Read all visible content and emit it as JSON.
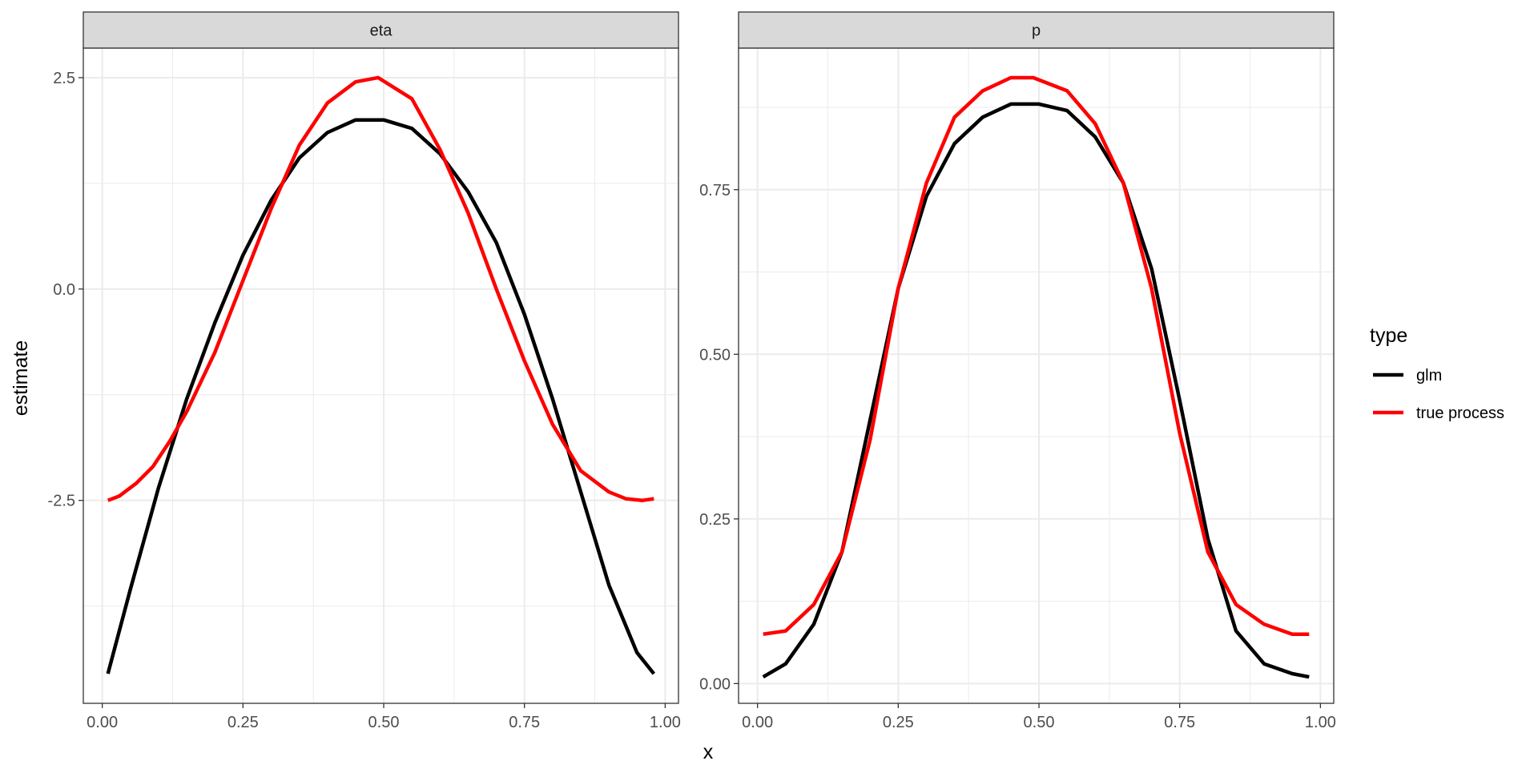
{
  "chart_data": {
    "type": "line",
    "xlabel": "x",
    "ylabel": "estimate",
    "legend": {
      "title": "type",
      "position": "right"
    },
    "series_styles": [
      {
        "name": "glm",
        "color": "#000000"
      },
      {
        "name": "true process",
        "color": "#ff0000"
      }
    ],
    "x_ticks": [
      "0.00",
      "0.25",
      "0.50",
      "0.75",
      "1.00"
    ],
    "x_tick_values": [
      0,
      0.25,
      0.5,
      0.75,
      1.0
    ],
    "x_range": [
      0.01,
      0.98
    ],
    "grid": true,
    "panels": [
      {
        "strip": "eta",
        "ylim": [
          -4.9,
          2.85
        ],
        "y_ticks": [
          "-2.5",
          "0.0",
          "2.5"
        ],
        "y_tick_values": [
          -2.5,
          0,
          2.5
        ],
        "series": [
          {
            "name": "glm",
            "x": [
              0.01,
              0.05,
              0.1,
              0.15,
              0.2,
              0.25,
              0.3,
              0.35,
              0.4,
              0.45,
              0.5,
              0.55,
              0.6,
              0.65,
              0.7,
              0.75,
              0.8,
              0.85,
              0.9,
              0.95,
              0.98
            ],
            "values": [
              -4.55,
              -3.55,
              -2.35,
              -1.3,
              -0.4,
              0.4,
              1.05,
              1.55,
              1.85,
              2.0,
              2.0,
              1.9,
              1.6,
              1.15,
              0.55,
              -0.3,
              -1.3,
              -2.4,
              -3.5,
              -4.3,
              -4.55
            ]
          },
          {
            "name": "true process",
            "x": [
              0.01,
              0.03,
              0.06,
              0.09,
              0.12,
              0.15,
              0.2,
              0.25,
              0.3,
              0.35,
              0.4,
              0.45,
              0.49,
              0.55,
              0.6,
              0.65,
              0.7,
              0.75,
              0.8,
              0.85,
              0.9,
              0.93,
              0.96,
              0.98
            ],
            "values": [
              -2.5,
              -2.45,
              -2.3,
              -2.1,
              -1.8,
              -1.45,
              -0.75,
              0.1,
              0.95,
              1.7,
              2.2,
              2.45,
              2.5,
              2.25,
              1.65,
              0.9,
              0.0,
              -0.85,
              -1.6,
              -2.15,
              -2.4,
              -2.48,
              -2.5,
              -2.48
            ]
          }
        ]
      },
      {
        "strip": "p",
        "ylim": [
          -0.03,
          0.965
        ],
        "y_ticks": [
          "0.00",
          "0.25",
          "0.50",
          "0.75"
        ],
        "y_tick_values": [
          0,
          0.25,
          0.5,
          0.75
        ],
        "series": [
          {
            "name": "glm",
            "x": [
              0.01,
              0.05,
              0.1,
              0.15,
              0.2,
              0.25,
              0.3,
              0.35,
              0.4,
              0.45,
              0.5,
              0.55,
              0.6,
              0.65,
              0.7,
              0.75,
              0.8,
              0.85,
              0.9,
              0.95,
              0.98
            ],
            "values": [
              0.01,
              0.03,
              0.09,
              0.2,
              0.4,
              0.6,
              0.74,
              0.82,
              0.86,
              0.88,
              0.88,
              0.87,
              0.83,
              0.76,
              0.63,
              0.43,
              0.22,
              0.08,
              0.03,
              0.015,
              0.01
            ]
          },
          {
            "name": "true process",
            "x": [
              0.01,
              0.05,
              0.1,
              0.15,
              0.2,
              0.25,
              0.3,
              0.35,
              0.4,
              0.45,
              0.49,
              0.55,
              0.6,
              0.65,
              0.7,
              0.75,
              0.8,
              0.85,
              0.9,
              0.95,
              0.98
            ],
            "values": [
              0.075,
              0.08,
              0.12,
              0.2,
              0.37,
              0.6,
              0.76,
              0.86,
              0.9,
              0.92,
              0.92,
              0.9,
              0.85,
              0.76,
              0.6,
              0.38,
              0.2,
              0.12,
              0.09,
              0.075,
              0.075
            ]
          }
        ]
      }
    ]
  }
}
